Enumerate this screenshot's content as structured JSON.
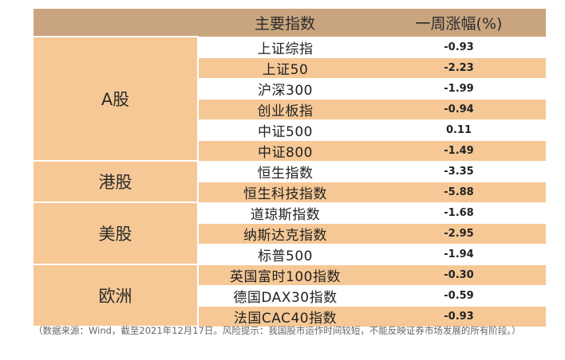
{
  "header": {
    "col1": "",
    "col2": "主要指数",
    "col3": "一周涨幅(%)"
  },
  "groups": [
    {
      "name": "A股",
      "rows": [
        {
          "index": "上证综指",
          "change": "-0.93"
        },
        {
          "index": "上证50",
          "change": "-2.23"
        },
        {
          "index": "沪深300",
          "change": "-1.99"
        },
        {
          "index": "创业板指",
          "change": "-0.94"
        },
        {
          "index": "中证500",
          "change": "0.11"
        },
        {
          "index": "中证800",
          "change": "-1.49"
        }
      ]
    },
    {
      "name": "港股",
      "rows": [
        {
          "index": "恒生指数",
          "change": "-3.35"
        },
        {
          "index": "恒生科技指数",
          "change": "-5.88"
        }
      ]
    },
    {
      "name": "美股",
      "rows": [
        {
          "index": "道琼斯指数",
          "change": "-1.68"
        },
        {
          "index": "纳斯达克指数",
          "change": "-2.95"
        },
        {
          "index": "标普500",
          "change": "-1.94"
        }
      ]
    },
    {
      "name": "欧洲",
      "rows": [
        {
          "index": "英国富时100指数",
          "change": "-0.30"
        },
        {
          "index": "德国DAX30指数",
          "change": "-0.59"
        },
        {
          "index": "法国CAC40指数",
          "change": "-0.93"
        }
      ]
    }
  ],
  "note": "（数据来源：Wind，截至2021年12月17日。风险提示：我国股市运作时间较短，不能反映证券市场发展的所有阶段。）"
}
